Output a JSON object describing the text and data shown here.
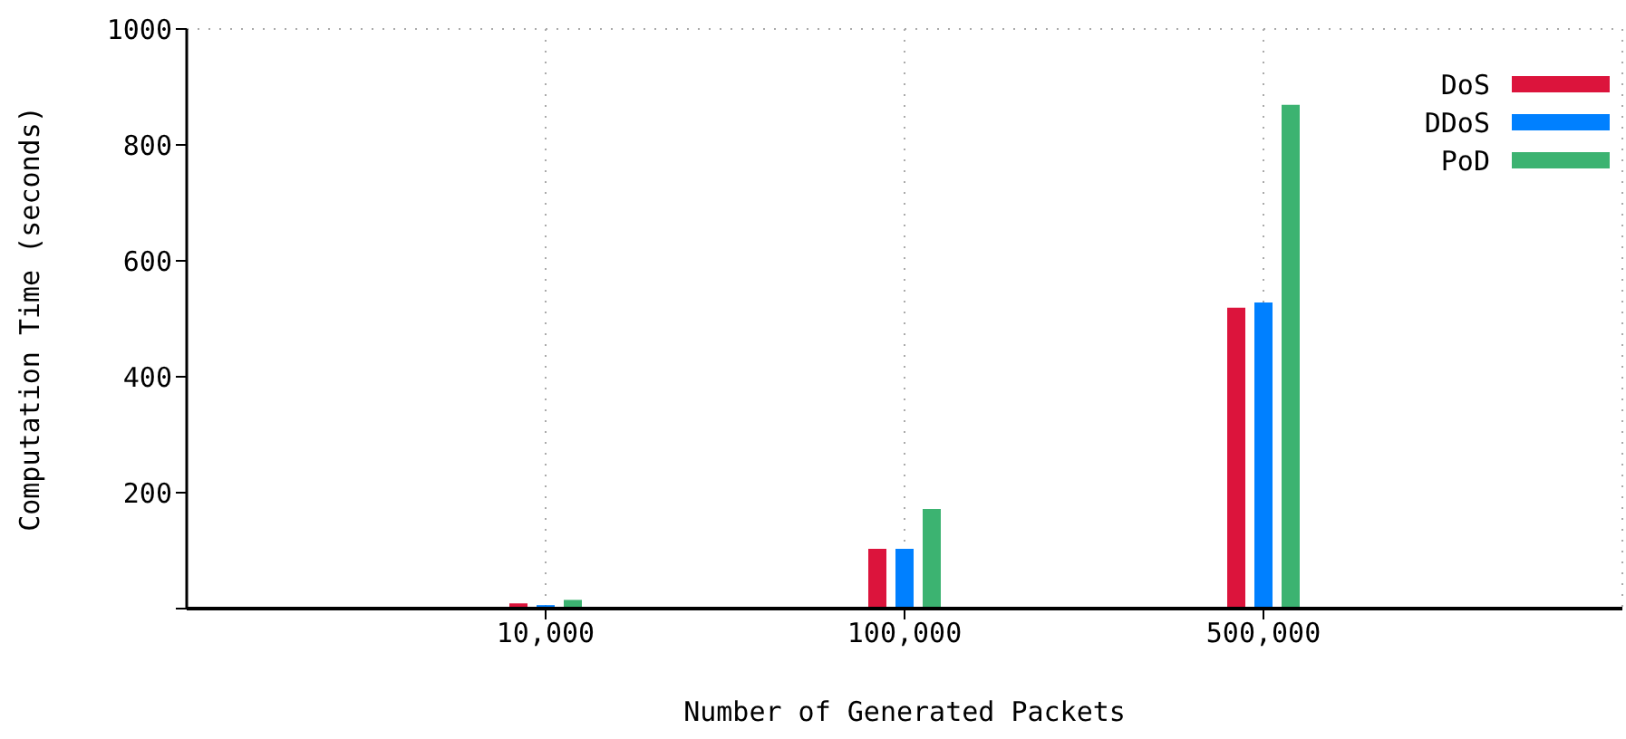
{
  "chart_data": {
    "type": "bar",
    "xlabel": "Number of Generated Packets",
    "ylabel": "Computation Time (seconds)",
    "categories": [
      "10,000",
      "100,000",
      "500,000"
    ],
    "series": [
      {
        "name": "DoS",
        "color": "#dc143c",
        "values": [
          9,
          103,
          519
        ]
      },
      {
        "name": "DDoS",
        "color": "#0080ff",
        "values": [
          6,
          103,
          528
        ]
      },
      {
        "name": "PoD",
        "color": "#3cb371",
        "values": [
          15,
          172,
          869
        ]
      }
    ],
    "ylim": [
      0,
      1000
    ],
    "yticks": [
      {
        "value": 0,
        "label": null
      },
      200,
      400,
      600,
      800,
      1000
    ],
    "grid": true,
    "legend": "top right"
  }
}
